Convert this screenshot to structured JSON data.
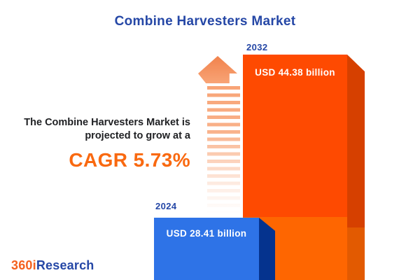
{
  "title": "Combine Harvesters Market",
  "description": {
    "line1": "The Combine Harvesters Market is",
    "line2": "projected to grow at a",
    "cagr_label": "CAGR 5.73%"
  },
  "bars": [
    {
      "year": "2024",
      "value_label": "USD 28.41 billion"
    },
    {
      "year": "2032",
      "value_label": "USD 44.38 billion"
    }
  ],
  "logo": {
    "prefix": "360i",
    "suffix": "Research"
  },
  "chart_data": {
    "type": "bar",
    "title": "Combine Harvesters Market",
    "categories": [
      "2024",
      "2032"
    ],
    "values": [
      28.41,
      44.38
    ],
    "unit": "USD billion",
    "data_labels": [
      "USD 28.41 billion",
      "USD 44.38 billion"
    ],
    "cagr_percent": 5.73,
    "annotation": "The Combine Harvesters Market is projected to grow at a CAGR 5.73%",
    "bar_colors": [
      "#2E73E7",
      "#FE4A01"
    ],
    "style": "3d-bars, no axes, no gridlines, labels above and inside bars"
  },
  "colors": {
    "blue-dark": "#2547A6",
    "text-dark": "#202124",
    "cagr-orange": "#F96910",
    "bar-blue": "#2E73E7",
    "bar-blue-side": "#05338E",
    "bar-orange": "#FE4A01",
    "bar-orange-light": "#FE6601",
    "bar-orange-side": "#D64000",
    "bar-orange-side-light": "#E25A01",
    "arrow-top": "#F1824C",
    "arrow-bottom": "#F8A476",
    "logo-orange": "#F4611E"
  }
}
